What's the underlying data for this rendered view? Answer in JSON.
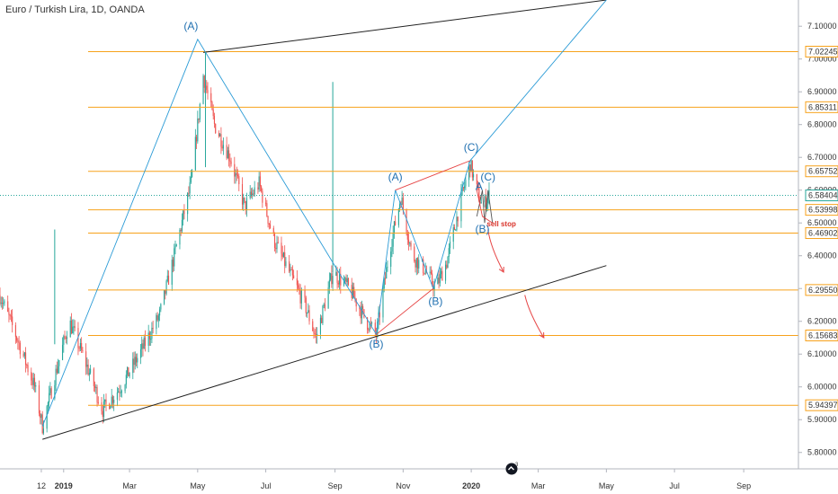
{
  "header": {
    "title": "Euro / Turkish Lira, 1D, OANDA"
  },
  "chart_data": {
    "type": "candlestick",
    "title": "Euro / Turkish Lira, 1D, OANDA",
    "ylim": [
      5.75,
      7.18
    ],
    "x_range": [
      "2018-11-05",
      "2020-10-20"
    ],
    "grid": false,
    "y_ticks": [
      {
        "value": 5.8,
        "label": "5.80000"
      },
      {
        "value": 5.9,
        "label": "5.90000"
      },
      {
        "value": 6.0,
        "label": "6.00000"
      },
      {
        "value": 6.1,
        "label": "6.10000"
      },
      {
        "value": 6.2,
        "label": "6.20000"
      },
      {
        "value": 6.3,
        "label": "6.30000"
      },
      {
        "value": 6.4,
        "label": "6.40000"
      },
      {
        "value": 6.5,
        "label": "6.50000"
      },
      {
        "value": 6.6,
        "label": "6.60000"
      },
      {
        "value": 6.7,
        "label": "6.70000"
      },
      {
        "value": 6.8,
        "label": "6.80000"
      },
      {
        "value": 6.9,
        "label": "6.90000"
      },
      {
        "value": 7.0,
        "label": "7.00000"
      },
      {
        "value": 7.1,
        "label": "7.10000"
      }
    ],
    "x_ticks": [
      {
        "date": "2018-12-12",
        "label": "12"
      },
      {
        "date": "2019-01-01",
        "label": "2019"
      },
      {
        "date": "2019-03-01",
        "label": "Mar"
      },
      {
        "date": "2019-05-01",
        "label": "May"
      },
      {
        "date": "2019-07-01",
        "label": "Jul"
      },
      {
        "date": "2019-09-01",
        "label": "Sep"
      },
      {
        "date": "2019-11-01",
        "label": "Nov"
      },
      {
        "date": "2020-01-01",
        "label": "2020"
      },
      {
        "date": "2020-03-01",
        "label": "Mar"
      },
      {
        "date": "2020-05-01",
        "label": "May"
      },
      {
        "date": "2020-07-01",
        "label": "Jul"
      },
      {
        "date": "2020-09-01",
        "label": "Sep"
      }
    ],
    "keypoints": [
      {
        "date": "2018-11-05",
        "close": 6.28
      },
      {
        "date": "2018-11-20",
        "close": 6.15
      },
      {
        "date": "2018-12-06",
        "close": 6.0
      },
      {
        "date": "2018-12-13",
        "close": 5.88
      },
      {
        "date": "2018-12-24",
        "close": 6.03
      },
      {
        "date": "2019-01-06",
        "close": 6.2
      },
      {
        "date": "2019-01-20",
        "close": 6.08
      },
      {
        "date": "2019-02-05",
        "close": 5.93
      },
      {
        "date": "2019-02-21",
        "close": 6.0
      },
      {
        "date": "2019-03-10",
        "close": 6.1
      },
      {
        "date": "2019-03-28",
        "close": 6.22
      },
      {
        "date": "2019-04-10",
        "close": 6.4
      },
      {
        "date": "2019-04-25",
        "close": 6.62
      },
      {
        "date": "2019-05-06",
        "close": 6.95
      },
      {
        "date": "2019-05-16",
        "close": 6.8
      },
      {
        "date": "2019-05-30",
        "close": 6.7
      },
      {
        "date": "2019-06-12",
        "close": 6.55
      },
      {
        "date": "2019-06-25",
        "close": 6.62
      },
      {
        "date": "2019-07-08",
        "close": 6.45
      },
      {
        "date": "2019-07-22",
        "close": 6.35
      },
      {
        "date": "2019-08-05",
        "close": 6.25
      },
      {
        "date": "2019-08-15",
        "close": 6.15
      },
      {
        "date": "2019-08-30",
        "close": 6.35
      },
      {
        "date": "2019-09-14",
        "close": 6.3
      },
      {
        "date": "2019-09-29",
        "close": 6.2
      },
      {
        "date": "2019-10-08",
        "close": 6.16
      },
      {
        "date": "2019-10-20",
        "close": 6.42
      },
      {
        "date": "2019-10-30",
        "close": 6.58
      },
      {
        "date": "2019-11-09",
        "close": 6.4
      },
      {
        "date": "2019-11-20",
        "close": 6.36
      },
      {
        "date": "2019-11-30",
        "close": 6.3
      },
      {
        "date": "2019-12-10",
        "close": 6.38
      },
      {
        "date": "2019-12-22",
        "close": 6.56
      },
      {
        "date": "2019-12-31",
        "close": 6.68
      },
      {
        "date": "2020-01-06",
        "close": 6.6
      },
      {
        "date": "2020-01-11",
        "close": 6.55
      },
      {
        "date": "2020-01-17",
        "close": 6.584
      }
    ],
    "spikes": [
      {
        "date": "2018-12-24",
        "high": 6.48
      },
      {
        "date": "2019-03-28",
        "high": 6.0,
        "low": 6.0
      },
      {
        "date": "2019-05-08",
        "high": 7.02
      },
      {
        "date": "2019-08-30",
        "high": 6.93,
        "low": 6.35
      }
    ],
    "price_levels": [
      {
        "value": 7.02245,
        "label": "7.02245",
        "color": "#f7a21b"
      },
      {
        "value": 6.85311,
        "label": "6.85311",
        "color": "#f7a21b"
      },
      {
        "value": 6.65752,
        "label": "6.65752",
        "color": "#f7a21b"
      },
      {
        "value": 6.53998,
        "label": "6.53998",
        "color": "#f7a21b"
      },
      {
        "value": 6.46902,
        "label": "6.46902",
        "color": "#f7a21b"
      },
      {
        "value": 6.2955,
        "label": "6.29550",
        "color": "#f7a21b"
      },
      {
        "value": 6.15683,
        "label": "6.15683",
        "color": "#f7a21b"
      },
      {
        "value": 5.94397,
        "label": "5.94397",
        "color": "#f7a21b"
      }
    ],
    "last_price": {
      "value": 6.58404,
      "label": "6.58404",
      "color": "#26a69a"
    },
    "trendlines": [
      {
        "points": [
          [
            "2018-12-13",
            5.84
          ],
          [
            "2020-05-01",
            6.37
          ]
        ],
        "color": "#222222"
      },
      {
        "points": [
          [
            "2019-05-06",
            7.02
          ],
          [
            "2020-05-01",
            7.18
          ]
        ],
        "color": "#222222"
      }
    ],
    "wave_lines": [
      {
        "points": [
          [
            "2018-12-13",
            5.88
          ],
          [
            "2019-05-01",
            7.06
          ],
          [
            "2019-10-08",
            6.16
          ],
          [
            "2019-10-25",
            6.6
          ],
          [
            "2019-11-28",
            6.3
          ],
          [
            "2019-12-31",
            6.69
          ],
          [
            "2020-05-01",
            7.18
          ]
        ],
        "color": "#2b9bd6"
      },
      {
        "points": [
          [
            "2020-01-06",
            6.52
          ],
          [
            "2020-01-11",
            6.6
          ],
          [
            "2020-01-13",
            6.5
          ],
          [
            "2020-01-16",
            6.6
          ],
          [
            "2020-01-20",
            6.5
          ]
        ],
        "color": "#555555"
      }
    ],
    "red_lines": [
      {
        "points": [
          [
            "2019-10-08",
            6.16
          ],
          [
            "2019-11-28",
            6.3
          ]
        ],
        "color": "#e64545"
      },
      {
        "points": [
          [
            "2019-10-25",
            6.6
          ],
          [
            "2019-12-31",
            6.69
          ]
        ],
        "color": "#e64545"
      },
      {
        "points": [
          [
            "2020-01-06",
            6.6
          ],
          [
            "2020-01-11",
            6.52
          ],
          [
            "2020-01-20",
            6.5
          ]
        ],
        "color": "#e64545"
      }
    ],
    "arrows": [
      {
        "from": [
          "2020-01-16",
          6.48
        ],
        "to": [
          "2020-01-30",
          6.35
        ],
        "color": "#e64545"
      },
      {
        "from": [
          "2020-02-18",
          6.28
        ],
        "to": [
          "2020-03-06",
          6.15
        ],
        "color": "#e64545"
      }
    ],
    "wave_labels": [
      {
        "text": "(A)",
        "date": "2019-04-25",
        "value": 7.09
      },
      {
        "text": "(B)",
        "date": "2019-10-08",
        "value": 6.12
      },
      {
        "text": "(A)",
        "date": "2019-10-25",
        "value": 6.63
      },
      {
        "text": "(B)",
        "date": "2019-11-30",
        "value": 6.25
      },
      {
        "text": "(C)",
        "date": "2020-01-01",
        "value": 6.72
      },
      {
        "text": "A",
        "date": "2020-01-08",
        "value": 6.6
      },
      {
        "text": "(C)",
        "date": "2020-01-16",
        "value": 6.63
      },
      {
        "text": "(B)",
        "date": "2020-01-11",
        "value": 6.47
      }
    ],
    "annotations": [
      {
        "text": "sell stop",
        "date": "2020-01-28",
        "value": 6.49
      }
    ],
    "colors": {
      "up": "#26a69a",
      "down": "#ef5350"
    }
  }
}
